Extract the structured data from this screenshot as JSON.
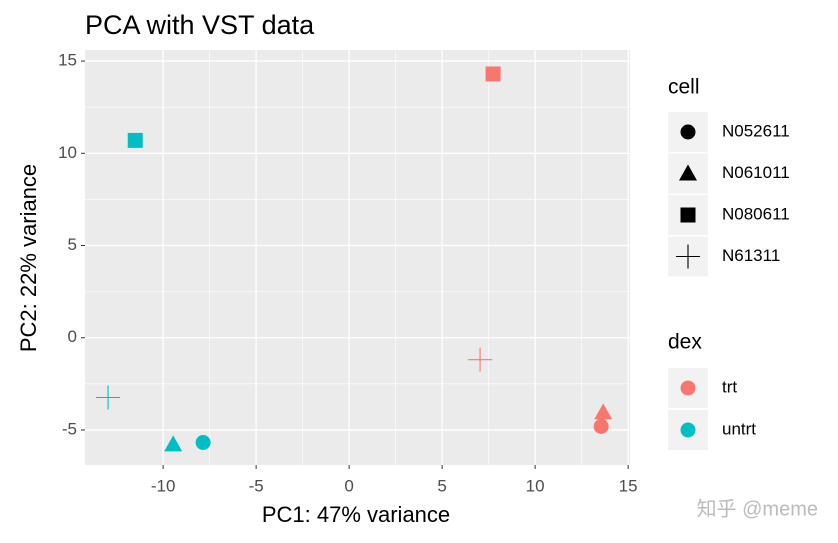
{
  "chart_data": {
    "type": "scatter",
    "title": "PCA with VST data",
    "xlabel": "PC1: 47% variance",
    "ylabel": "PC2: 22% variance",
    "xlim": [
      -14.2,
      15.1
    ],
    "ylim": [
      -6.9,
      15.6
    ],
    "xticks": [
      -10,
      -5,
      0,
      5,
      10,
      15
    ],
    "yticks": [
      -5,
      0,
      5,
      10,
      15
    ],
    "grid": true,
    "shape_legend": {
      "title": "cell",
      "entries": [
        {
          "name": "N052611",
          "shape": "circle"
        },
        {
          "name": "N061011",
          "shape": "triangle"
        },
        {
          "name": "N080611",
          "shape": "square"
        },
        {
          "name": "N61311",
          "shape": "plus"
        }
      ]
    },
    "color_legend_title": "dex",
    "series": [
      {
        "name": "trt",
        "color": "#F8766D",
        "x": [
          7.74,
          7.04,
          13.66,
          13.55
        ],
        "values": [
          14.3,
          -1.19,
          -4.05,
          -4.81
        ],
        "shapes": [
          "square",
          "plus",
          "triangle",
          "circle"
        ]
      },
      {
        "name": "untrt",
        "color": "#00BFC4",
        "x": [
          -11.5,
          -12.96,
          -9.46,
          -7.85
        ],
        "values": [
          10.7,
          -3.24,
          -5.78,
          -5.68
        ],
        "shapes": [
          "square",
          "plus",
          "triangle",
          "circle"
        ]
      }
    ],
    "watermark": "知乎 @meme"
  }
}
